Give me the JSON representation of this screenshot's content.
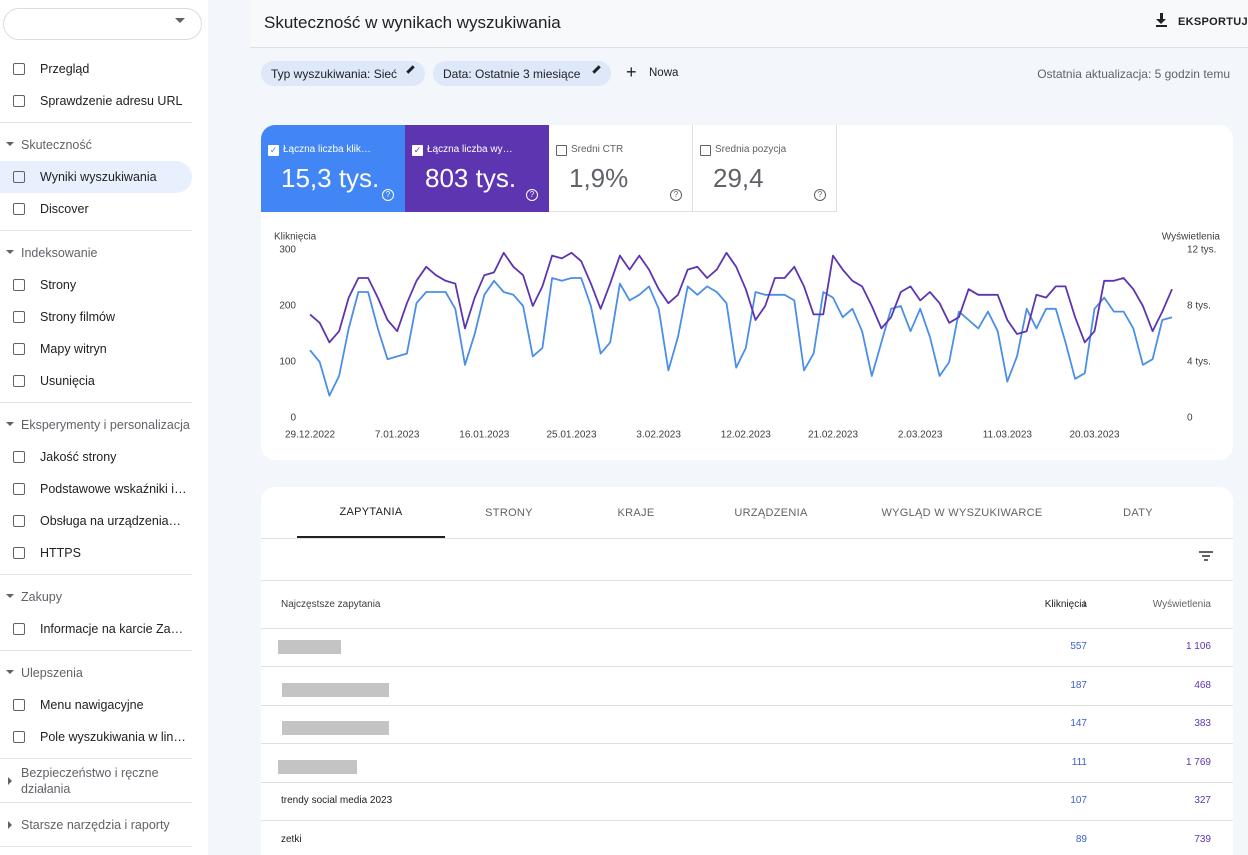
{
  "sidebar": {
    "sections": [
      {
        "items": [
          "Przegląd",
          "Sprawdzenie adresu URL"
        ]
      },
      {
        "title": "Skuteczność",
        "items": [
          "Wyniki wyszukiwania",
          "Discover"
        ]
      },
      {
        "title": "Indeksowanie",
        "items": [
          "Strony",
          "Strony filmów",
          "Mapy witryn",
          "Usunięcia"
        ]
      },
      {
        "title": "Eksperymenty i personalizacja",
        "items": [
          "Jakość strony",
          "Podstawowe wskaźniki i…",
          "Obsługa na urządzenia…",
          "HTTPS"
        ]
      },
      {
        "title": "Zakupy",
        "items": [
          "Informacje na karcie Za…"
        ]
      },
      {
        "title": "Ulepszenia",
        "items": [
          "Menu nawigacyjne",
          "Pole wyszukiwania w lin…"
        ]
      },
      {
        "title": "Bezpieczeństwo i ręczne działania",
        "items": [],
        "collapsed": true
      },
      {
        "title": "Starsze narzędzia i raporty",
        "items": [],
        "collapsed": true
      }
    ],
    "active": "Wyniki wyszukiwania"
  },
  "header": {
    "title": "Skuteczność w wynikach wyszukiwania",
    "export": "EKSPORTUJ"
  },
  "filters": {
    "chips": [
      "Typ wyszukiwania: Sieć",
      "Data: Ostatnie 3 miesiące"
    ],
    "new": "Nowa",
    "updated": "Ostatnia aktualizacja: 5 godzin temu"
  },
  "metrics": [
    {
      "label": "Łączna liczba klik…",
      "value": "15,3 tys.",
      "selected": true,
      "color": "#4285f4"
    },
    {
      "label": "Łączna liczba wy…",
      "value": "803 tys.",
      "selected": true,
      "color": "#5e35b1"
    },
    {
      "label": "Średni CTR",
      "value": "1,9%",
      "selected": false
    },
    {
      "label": "Średnia pozycja",
      "value": "29,4",
      "selected": false
    }
  ],
  "chart": {
    "type": "line",
    "ylabel": "Kliknięcia",
    "y2label": "Wyświetlenia",
    "categories": [
      "29.12.2022",
      null,
      null,
      null,
      null,
      null,
      null,
      null,
      null,
      "7.01.2023",
      null,
      null,
      null,
      null,
      null,
      null,
      null,
      null,
      "16.01.2023",
      null,
      null,
      null,
      null,
      null,
      null,
      null,
      null,
      "25.01.2023",
      null,
      null,
      null,
      null,
      null,
      null,
      null,
      null,
      "3.02.2023",
      null,
      null,
      null,
      null,
      null,
      null,
      null,
      null,
      "12.02.2023",
      null,
      null,
      null,
      null,
      null,
      null,
      null,
      null,
      "21.02.2023",
      null,
      null,
      null,
      null,
      null,
      null,
      null,
      null,
      "2.03.2023",
      null,
      null,
      null,
      null,
      null,
      null,
      null,
      null,
      "11.03.2023",
      null,
      null,
      null,
      null,
      null,
      null,
      null,
      null,
      "20.03.2023",
      null,
      null,
      null,
      null,
      null,
      null,
      null,
      null
    ],
    "ylim": [
      0,
      300
    ],
    "yticks": [
      0,
      100,
      200,
      300
    ],
    "y2lim": [
      0,
      12000
    ],
    "y2ticks": [
      0,
      {
        "value": 4000,
        "label": "4 tys."
      },
      {
        "value": 8000,
        "label": "8 tys."
      },
      {
        "value": 12000,
        "label": "12 tys."
      }
    ],
    "grid": false,
    "series": [
      {
        "name": "Kliknięcia",
        "color": "#4a8fe7",
        "values": [
          121,
          100,
          40,
          75,
          160,
          225,
          225,
          160,
          105,
          110,
          115,
          205,
          225,
          225,
          225,
          195,
          95,
          150,
          220,
          245,
          225,
          220,
          200,
          110,
          125,
          250,
          245,
          250,
          250,
          200,
          115,
          135,
          240,
          210,
          220,
          235,
          195,
          85,
          145,
          235,
          220,
          235,
          225,
          205,
          90,
          125,
          225,
          220,
          220,
          220,
          210,
          85,
          115,
          225,
          215,
          180,
          195,
          155,
          75,
          135,
          195,
          200,
          155,
          195,
          145,
          75,
          100,
          190,
          175,
          160,
          190,
          155,
          65,
          110,
          195,
          160,
          195,
          195,
          135,
          70,
          80,
          195,
          215,
          190,
          190,
          160,
          95,
          105,
          175,
          180
        ]
      },
      {
        "name": "Wyświetlenia",
        "color": "#5e35b1",
        "axis": "y2",
        "values": [
          7400,
          6800,
          5400,
          6200,
          8600,
          10000,
          10000,
          8600,
          7000,
          6200,
          8200,
          9800,
          10800,
          10200,
          9800,
          9600,
          6400,
          8600,
          10200,
          10400,
          11800,
          10800,
          10200,
          8000,
          9400,
          11600,
          11400,
          11800,
          11200,
          9600,
          7800,
          9600,
          11600,
          10600,
          11600,
          10600,
          9200,
          8200,
          8800,
          10600,
          10800,
          10000,
          10600,
          11800,
          10800,
          9200,
          7000,
          8000,
          10000,
          10000,
          10800,
          9400,
          7400,
          7400,
          11600,
          10600,
          9800,
          9400,
          8000,
          6400,
          7200,
          9000,
          9400,
          8400,
          9000,
          8200,
          6800,
          7200,
          9200,
          8800,
          8800,
          8800,
          7000,
          6000,
          6200,
          8800,
          8600,
          9400,
          9400,
          7200,
          5400,
          6200,
          9800,
          9800,
          10000,
          9200,
          8000,
          6200,
          7600,
          9200
        ]
      }
    ]
  },
  "tabs": [
    "ZAPYTANIA",
    "STRONY",
    "KRAJE",
    "URZĄDZENIA",
    "WYGLĄD W WYSZUKIWARCE",
    "DATY"
  ],
  "table": {
    "columns": [
      "Najczęstsze zapytania",
      "Kliknięcia",
      "Wyświetlenia"
    ],
    "rows": [
      {
        "clicks": "557",
        "impressions": "1 106"
      },
      {
        "clicks": "187",
        "impressions": "468"
      },
      {
        "clicks": "147",
        "impressions": "383"
      },
      {
        "clicks": "111",
        "impressions": "1 769"
      },
      {
        "query": "trendy social media 2023",
        "clicks": "107",
        "impressions": "327"
      },
      {
        "query": "zetki",
        "clicks": "89",
        "impressions": "739"
      }
    ]
  }
}
